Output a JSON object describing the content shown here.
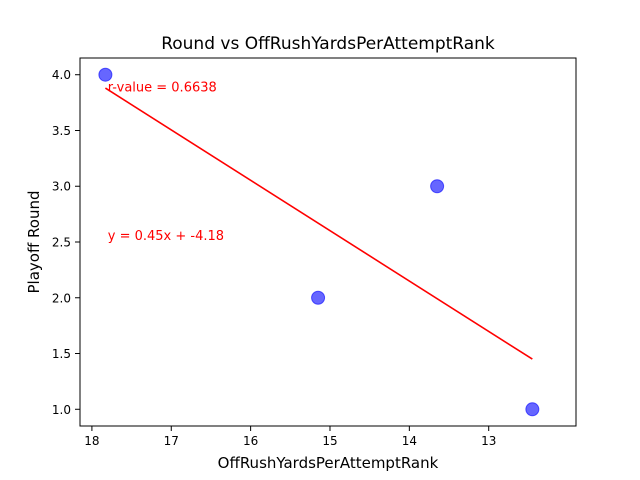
{
  "chart_data": {
    "type": "scatter",
    "title": "Round vs OffRushYardsPerAttemptRank",
    "xlabel": "OffRushYardsPerAttemptRank",
    "ylabel": "Playoff Round",
    "x_inverted": true,
    "xlim": [
      18.15,
      11.9
    ],
    "ylim": [
      0.85,
      4.15
    ],
    "xticks": [
      18,
      17,
      16,
      15,
      14,
      13
    ],
    "yticks": [
      1.0,
      1.5,
      2.0,
      2.5,
      3.0,
      3.5,
      4.0
    ],
    "xtick_labels": [
      "18",
      "17",
      "16",
      "15",
      "14",
      "13"
    ],
    "ytick_labels": [
      "1.0",
      "1.5",
      "2.0",
      "2.5",
      "3.0",
      "3.5",
      "4.0"
    ],
    "grid": false,
    "points": [
      {
        "x": 17.83,
        "y": 4.0
      },
      {
        "x": 15.15,
        "y": 2.0
      },
      {
        "x": 13.65,
        "y": 3.0
      },
      {
        "x": 12.45,
        "y": 1.0
      }
    ],
    "fit_line": {
      "x": [
        17.83,
        12.45
      ],
      "y": [
        3.88,
        1.45
      ]
    },
    "annotations": [
      {
        "text": "r-value = 0.6638",
        "x": 17.8,
        "y": 3.85
      },
      {
        "text": "y = 0.45x + -4.18",
        "x": 17.8,
        "y": 2.52
      }
    ],
    "colors": {
      "points": "#0000ff",
      "fit_line": "#ff0000",
      "annotation": "#ff0000",
      "axes": "#000000",
      "background": "#ffffff"
    }
  }
}
